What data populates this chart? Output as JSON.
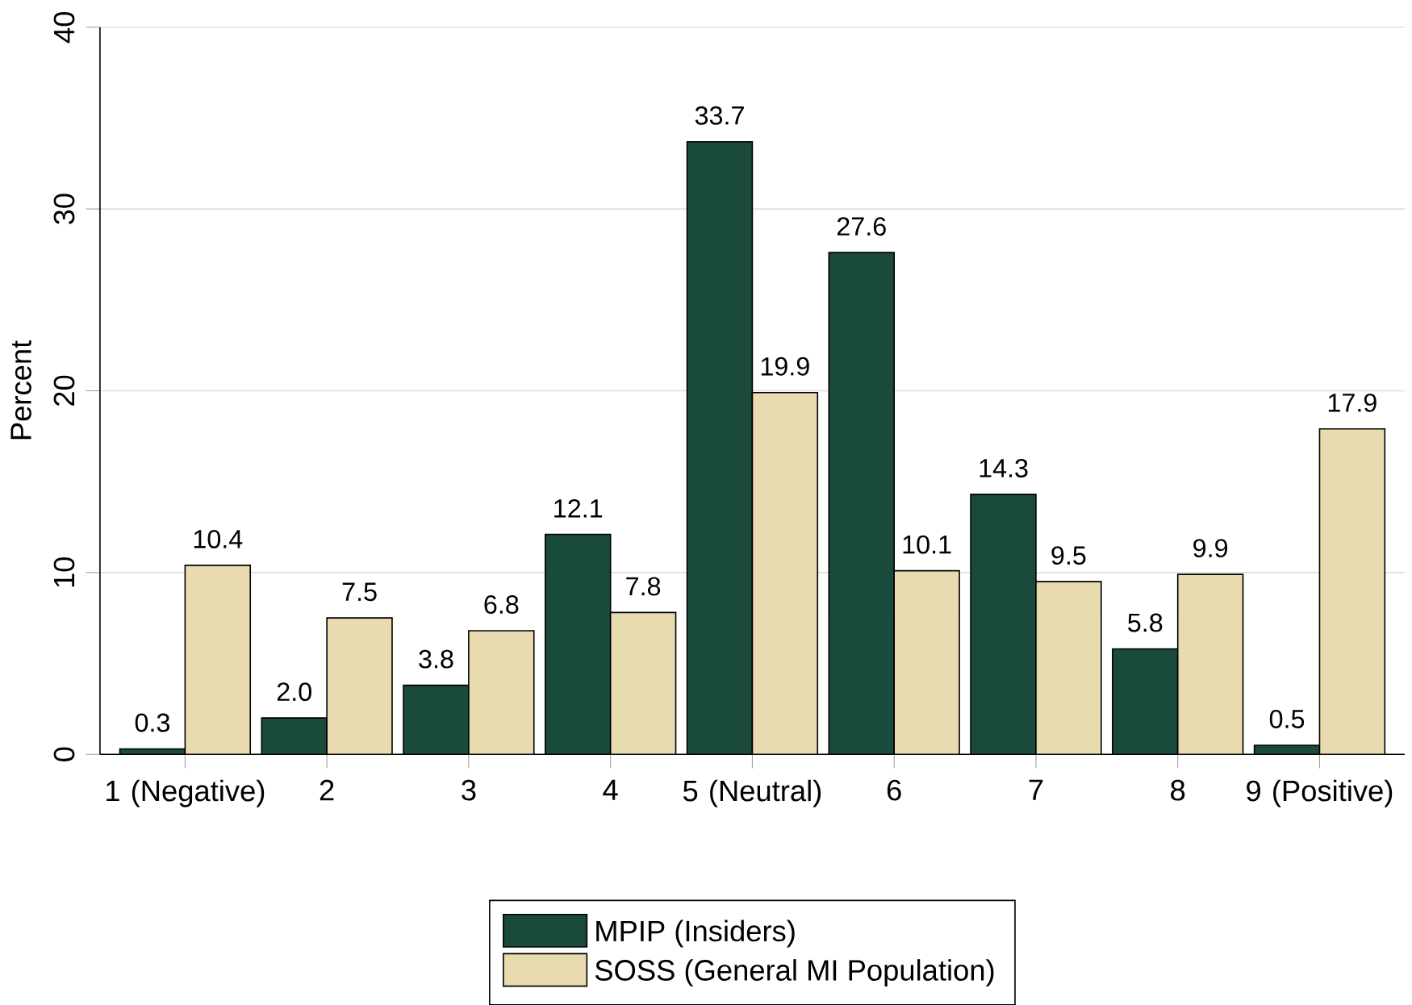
{
  "chart_data": {
    "type": "bar",
    "ylabel": "Percent",
    "categories": [
      "1 (Negative)",
      "2",
      "3",
      "4",
      "5 (Neutral)",
      "6",
      "7",
      "8",
      "9 (Positive)"
    ],
    "series": [
      {
        "name": "MPIP (Insiders)",
        "color": "#1a4a3c",
        "values": [
          0.3,
          2.0,
          3.8,
          12.1,
          33.7,
          27.6,
          14.3,
          5.8,
          0.5
        ],
        "value_labels": [
          "0.3",
          "2.0",
          "3.8",
          "12.1",
          "33.7",
          "27.6",
          "14.3",
          "5.8",
          "0.5"
        ]
      },
      {
        "name": "SOSS (General MI Population)",
        "color": "#e9dbb0",
        "values": [
          10.4,
          7.5,
          6.8,
          7.8,
          19.9,
          10.1,
          9.5,
          9.9,
          17.9
        ],
        "value_labels": [
          "10.4",
          "7.5",
          "6.8",
          "7.8",
          "19.9",
          "10.1",
          "9.5",
          "9.9",
          "17.9"
        ]
      }
    ],
    "ylim": [
      0,
      40
    ],
    "yticks": [
      0,
      10,
      20,
      30,
      40
    ],
    "grid": "y",
    "legend": "bottom"
  }
}
